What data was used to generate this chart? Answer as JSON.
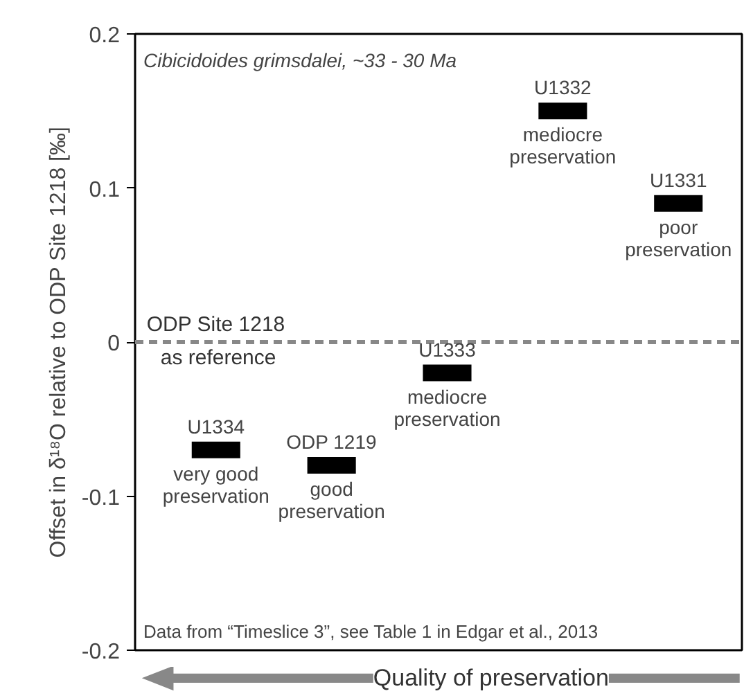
{
  "chart_data": {
    "type": "scatter",
    "title": "Cibicidoides grimsdalei, ~33 - 30 Ma",
    "xlabel": "Quality of preservation",
    "ylabel": "Offset in δ¹⁸O relative to ODP Site 1218 [‰]",
    "categories": [
      "U1334",
      "ODP 1219",
      "U1333",
      "U1332",
      "U1331"
    ],
    "values": [
      -0.07,
      -0.08,
      -0.02,
      0.15,
      0.09
    ],
    "color": "#000000",
    "ylim": [
      -0.2,
      0.2
    ],
    "yticks": [
      -0.2,
      -0.1,
      0,
      0.1,
      0.2
    ],
    "grid": false,
    "ref_lines": [
      {
        "axis": "y",
        "value": 0,
        "label": "ODP Site 1218\nas reference",
        "color": "#888888",
        "line_style": "dashed"
      }
    ],
    "annotations": [
      "very good\npreservation",
      "good\npreservation",
      "mediocre\npreservation",
      "mediocre\npreservation",
      "poor\npreservation",
      "Data from “Timeslice 3”, see Table 1 in Edgar et al., 2013"
    ]
  }
}
